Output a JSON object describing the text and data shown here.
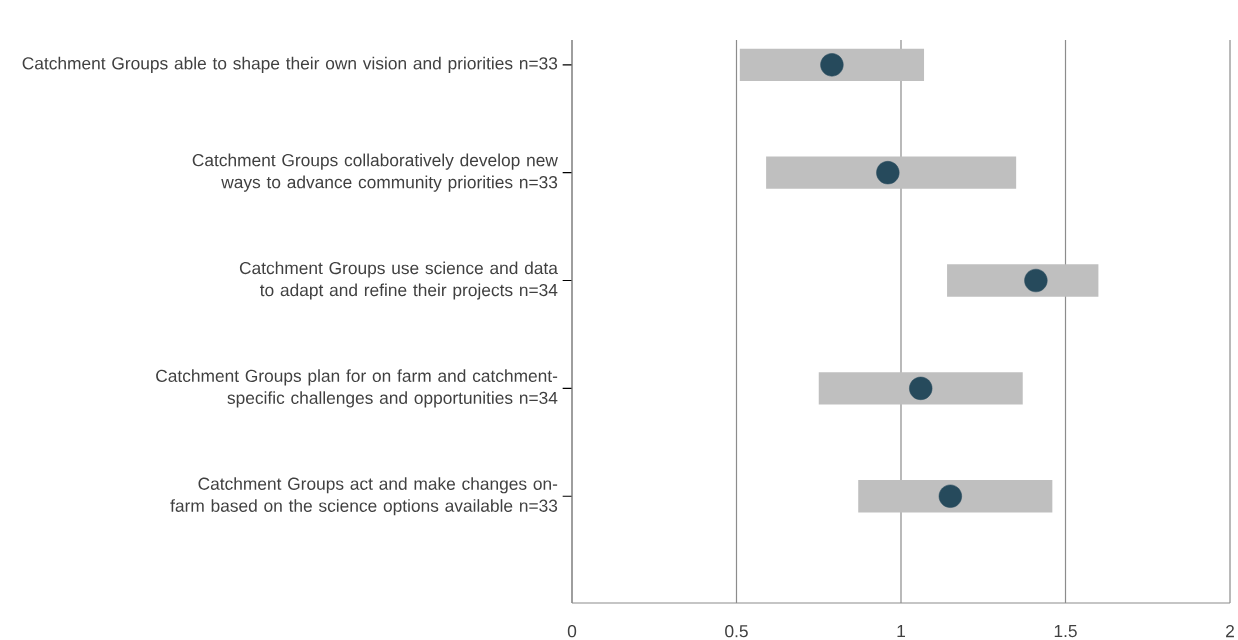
{
  "chart_data": {
    "type": "bar",
    "orientation": "horizontal",
    "categories": [
      "Catchment Groups able to shape their own vision and priorities n=33",
      "Catchment Groups collaboratively develop new ways to advance community priorities n=33",
      "Catchment Groups use science and data to adapt and refine their projects n=34",
      "Catchment Groups plan for on farm and catchment-specific challenges and opportunities n=34",
      "Catchment Groups act and make changes on-farm based on the science options available n=33"
    ],
    "series": [
      {
        "color": "#bfbfbf",
        "base": [
          0.51,
          0.59,
          1.14,
          0.75,
          0.87
        ],
        "values": [
          0.56,
          0.76,
          0.46,
          0.62,
          0.59
        ]
      },
      {
        "type": "scatter",
        "color": "#264a5c",
        "marker": "circle",
        "values": [
          0.79,
          0.96,
          1.41,
          1.06,
          1.15
        ]
      }
    ],
    "xlim": [
      0,
      2
    ],
    "xticks": [
      0,
      0.5,
      1,
      1.5,
      2
    ],
    "grid": "x"
  }
}
